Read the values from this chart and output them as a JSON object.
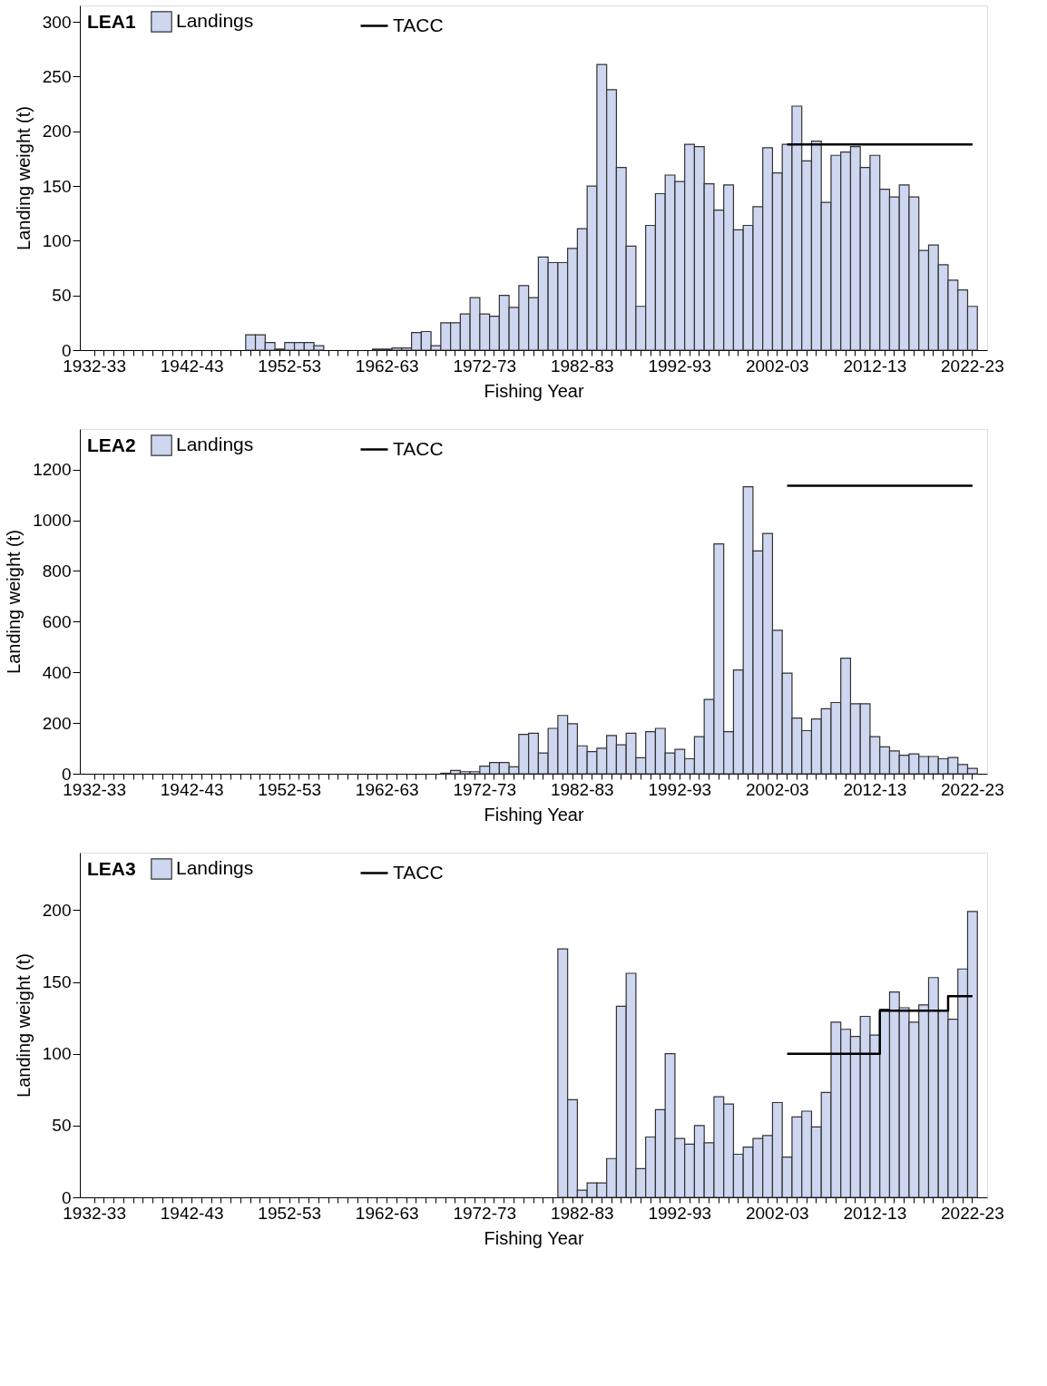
{
  "chart_data": [
    {
      "type": "bar",
      "legend_title": "LEA1",
      "xlabel": "Fishing Year",
      "ylabel": "Landing weight (t)",
      "legend": "top left",
      "grid": false,
      "categories": [
        "1932-33",
        null,
        null,
        null,
        null,
        null,
        null,
        null,
        null,
        null,
        "1942-43",
        null,
        null,
        null,
        null,
        null,
        null,
        null,
        null,
        null,
        "1952-53",
        null,
        null,
        null,
        null,
        null,
        null,
        null,
        null,
        null,
        "1962-63",
        null,
        null,
        null,
        null,
        null,
        null,
        null,
        null,
        null,
        "1972-73",
        null,
        null,
        null,
        null,
        null,
        null,
        null,
        null,
        null,
        "1982-83",
        null,
        null,
        null,
        null,
        null,
        null,
        null,
        null,
        null,
        "1992-93",
        null,
        null,
        null,
        null,
        null,
        null,
        null,
        null,
        null,
        "2002-03",
        null,
        null,
        null,
        null,
        null,
        null,
        null,
        null,
        null,
        "2012-13",
        null,
        null,
        null,
        null,
        null,
        null,
        null,
        null,
        null,
        "2022-23"
      ],
      "ylim": [
        0,
        315
      ],
      "yticks": [
        0,
        50,
        100,
        150,
        200,
        250,
        300
      ],
      "series": [
        {
          "name": "Landings",
          "color": "#ced6f0",
          "values": [
            0,
            0,
            0,
            0,
            0,
            0,
            0,
            0,
            0,
            0,
            0,
            0,
            0,
            0,
            0,
            0,
            14,
            14,
            7,
            1,
            7,
            7,
            7,
            4,
            0,
            0,
            0,
            0,
            0,
            1,
            1,
            2,
            2,
            16,
            17,
            4,
            25,
            25,
            33,
            48,
            33,
            31,
            50,
            39,
            59,
            48,
            85,
            80,
            80,
            93,
            111,
            150,
            261,
            238,
            167,
            95,
            40,
            114,
            143,
            160,
            154,
            188,
            186,
            152,
            128,
            151,
            110,
            114,
            131,
            185,
            162,
            188,
            223,
            173,
            191,
            135,
            178,
            181,
            186,
            167,
            178,
            147,
            140,
            151,
            140,
            91,
            96,
            78,
            64,
            55,
            40
          ]
        },
        {
          "name": "TACC",
          "type": "step",
          "color": "#000000",
          "values": [
            null,
            null,
            null,
            null,
            null,
            null,
            null,
            null,
            null,
            null,
            null,
            null,
            null,
            null,
            null,
            null,
            null,
            null,
            null,
            null,
            null,
            null,
            null,
            null,
            null,
            null,
            null,
            null,
            null,
            null,
            null,
            null,
            null,
            null,
            null,
            null,
            null,
            null,
            null,
            null,
            null,
            null,
            null,
            null,
            null,
            null,
            null,
            null,
            null,
            null,
            null,
            null,
            null,
            null,
            null,
            null,
            null,
            null,
            null,
            null,
            null,
            null,
            null,
            null,
            null,
            null,
            null,
            null,
            null,
            null,
            null,
            188,
            188,
            188,
            188,
            188,
            188,
            188,
            188,
            188,
            188,
            188,
            188,
            188,
            188,
            188,
            188,
            188,
            188,
            188,
            188
          ]
        }
      ]
    },
    {
      "type": "bar",
      "legend_title": "LEA2",
      "xlabel": "Fishing Year",
      "ylabel": "Landing weight (t)",
      "legend": "top left",
      "grid": false,
      "categories": [
        "1932-33",
        null,
        null,
        null,
        null,
        null,
        null,
        null,
        null,
        null,
        "1942-43",
        null,
        null,
        null,
        null,
        null,
        null,
        null,
        null,
        null,
        "1952-53",
        null,
        null,
        null,
        null,
        null,
        null,
        null,
        null,
        null,
        "1962-63",
        null,
        null,
        null,
        null,
        null,
        null,
        null,
        null,
        null,
        "1972-73",
        null,
        null,
        null,
        null,
        null,
        null,
        null,
        null,
        null,
        "1982-83",
        null,
        null,
        null,
        null,
        null,
        null,
        null,
        null,
        null,
        "1992-93",
        null,
        null,
        null,
        null,
        null,
        null,
        null,
        null,
        null,
        "2002-03",
        null,
        null,
        null,
        null,
        null,
        null,
        null,
        null,
        null,
        "2012-13",
        null,
        null,
        null,
        null,
        null,
        null,
        null,
        null,
        null,
        "2022-23"
      ],
      "ylim": [
        0,
        1360
      ],
      "yticks": [
        0,
        200,
        400,
        600,
        800,
        1000,
        1200
      ],
      "series": [
        {
          "name": "Landings",
          "color": "#ced6f0",
          "values": [
            0,
            0,
            0,
            0,
            0,
            0,
            0,
            0,
            0,
            0,
            0,
            0,
            0,
            0,
            0,
            0,
            0,
            0,
            0,
            0,
            0,
            0,
            0,
            0,
            0,
            0,
            0,
            0,
            0,
            0,
            0,
            0,
            0,
            0,
            0,
            0,
            2,
            13,
            8,
            8,
            30,
            44,
            44,
            27,
            155,
            160,
            82,
            179,
            230,
            197,
            110,
            87,
            101,
            151,
            114,
            160,
            63,
            166,
            179,
            82,
            96,
            59,
            146,
            293,
            907,
            166,
            409,
            1132,
            879,
            948,
            566,
            397,
            220,
            170,
            216,
            256,
            281,
            456,
            276,
            276,
            146,
            106,
            90,
            73,
            78,
            68,
            68,
            59,
            64,
            36,
            21
          ]
        },
        {
          "name": "TACC",
          "type": "step",
          "color": "#000000",
          "values": [
            null,
            null,
            null,
            null,
            null,
            null,
            null,
            null,
            null,
            null,
            null,
            null,
            null,
            null,
            null,
            null,
            null,
            null,
            null,
            null,
            null,
            null,
            null,
            null,
            null,
            null,
            null,
            null,
            null,
            null,
            null,
            null,
            null,
            null,
            null,
            null,
            null,
            null,
            null,
            null,
            null,
            null,
            null,
            null,
            null,
            null,
            null,
            null,
            null,
            null,
            null,
            null,
            null,
            null,
            null,
            null,
            null,
            null,
            null,
            null,
            null,
            null,
            null,
            null,
            null,
            null,
            null,
            null,
            null,
            null,
            null,
            1136,
            1136,
            1136,
            1136,
            1136,
            1136,
            1136,
            1136,
            1136,
            1136,
            1136,
            1136,
            1136,
            1136,
            1136,
            1136,
            1136,
            1136,
            1136,
            1136
          ]
        }
      ]
    },
    {
      "type": "bar",
      "legend_title": "LEA3",
      "xlabel": "Fishing Year",
      "ylabel": "Landing weight (t)",
      "legend": "top left",
      "grid": false,
      "categories": [
        "1932-33",
        null,
        null,
        null,
        null,
        null,
        null,
        null,
        null,
        null,
        "1942-43",
        null,
        null,
        null,
        null,
        null,
        null,
        null,
        null,
        null,
        "1952-53",
        null,
        null,
        null,
        null,
        null,
        null,
        null,
        null,
        null,
        "1962-63",
        null,
        null,
        null,
        null,
        null,
        null,
        null,
        null,
        null,
        "1972-73",
        null,
        null,
        null,
        null,
        null,
        null,
        null,
        null,
        null,
        "1982-83",
        null,
        null,
        null,
        null,
        null,
        null,
        null,
        null,
        null,
        "1992-93",
        null,
        null,
        null,
        null,
        null,
        null,
        null,
        null,
        null,
        "2002-03",
        null,
        null,
        null,
        null,
        null,
        null,
        null,
        null,
        null,
        "2012-13",
        null,
        null,
        null,
        null,
        null,
        null,
        null,
        null,
        null,
        "2022-23"
      ],
      "ylim": [
        0,
        240
      ],
      "yticks": [
        0,
        50,
        100,
        150,
        200
      ],
      "series": [
        {
          "name": "Landings",
          "color": "#ced6f0",
          "values": [
            0,
            0,
            0,
            0,
            0,
            0,
            0,
            0,
            0,
            0,
            0,
            0,
            0,
            0,
            0,
            0,
            0,
            0,
            0,
            0,
            0,
            0,
            0,
            0,
            0,
            0,
            0,
            0,
            0,
            0,
            0,
            0,
            0,
            0,
            0,
            0,
            0,
            0,
            0,
            0,
            0,
            0,
            0,
            0,
            0,
            0,
            0,
            0,
            173,
            68,
            5,
            10,
            10,
            27,
            133,
            156,
            20,
            42,
            61,
            100,
            41,
            37,
            50,
            38,
            70,
            65,
            30,
            35,
            41,
            43,
            66,
            28,
            56,
            60,
            49,
            73,
            122,
            117,
            112,
            126,
            113,
            131,
            143,
            132,
            122,
            134,
            153,
            130,
            124,
            159,
            199
          ]
        },
        {
          "name": "TACC",
          "type": "step",
          "color": "#000000",
          "values": [
            null,
            null,
            null,
            null,
            null,
            null,
            null,
            null,
            null,
            null,
            null,
            null,
            null,
            null,
            null,
            null,
            null,
            null,
            null,
            null,
            null,
            null,
            null,
            null,
            null,
            null,
            null,
            null,
            null,
            null,
            null,
            null,
            null,
            null,
            null,
            null,
            null,
            null,
            null,
            null,
            null,
            null,
            null,
            null,
            null,
            null,
            null,
            null,
            null,
            null,
            null,
            null,
            null,
            null,
            null,
            null,
            null,
            null,
            null,
            null,
            null,
            null,
            null,
            null,
            null,
            null,
            null,
            null,
            null,
            null,
            null,
            100,
            100,
            100,
            100,
            100,
            100,
            100,
            100,
            100,
            100,
            130,
            130,
            130,
            130,
            130,
            130,
            130,
            140,
            140,
            140
          ]
        }
      ]
    }
  ]
}
